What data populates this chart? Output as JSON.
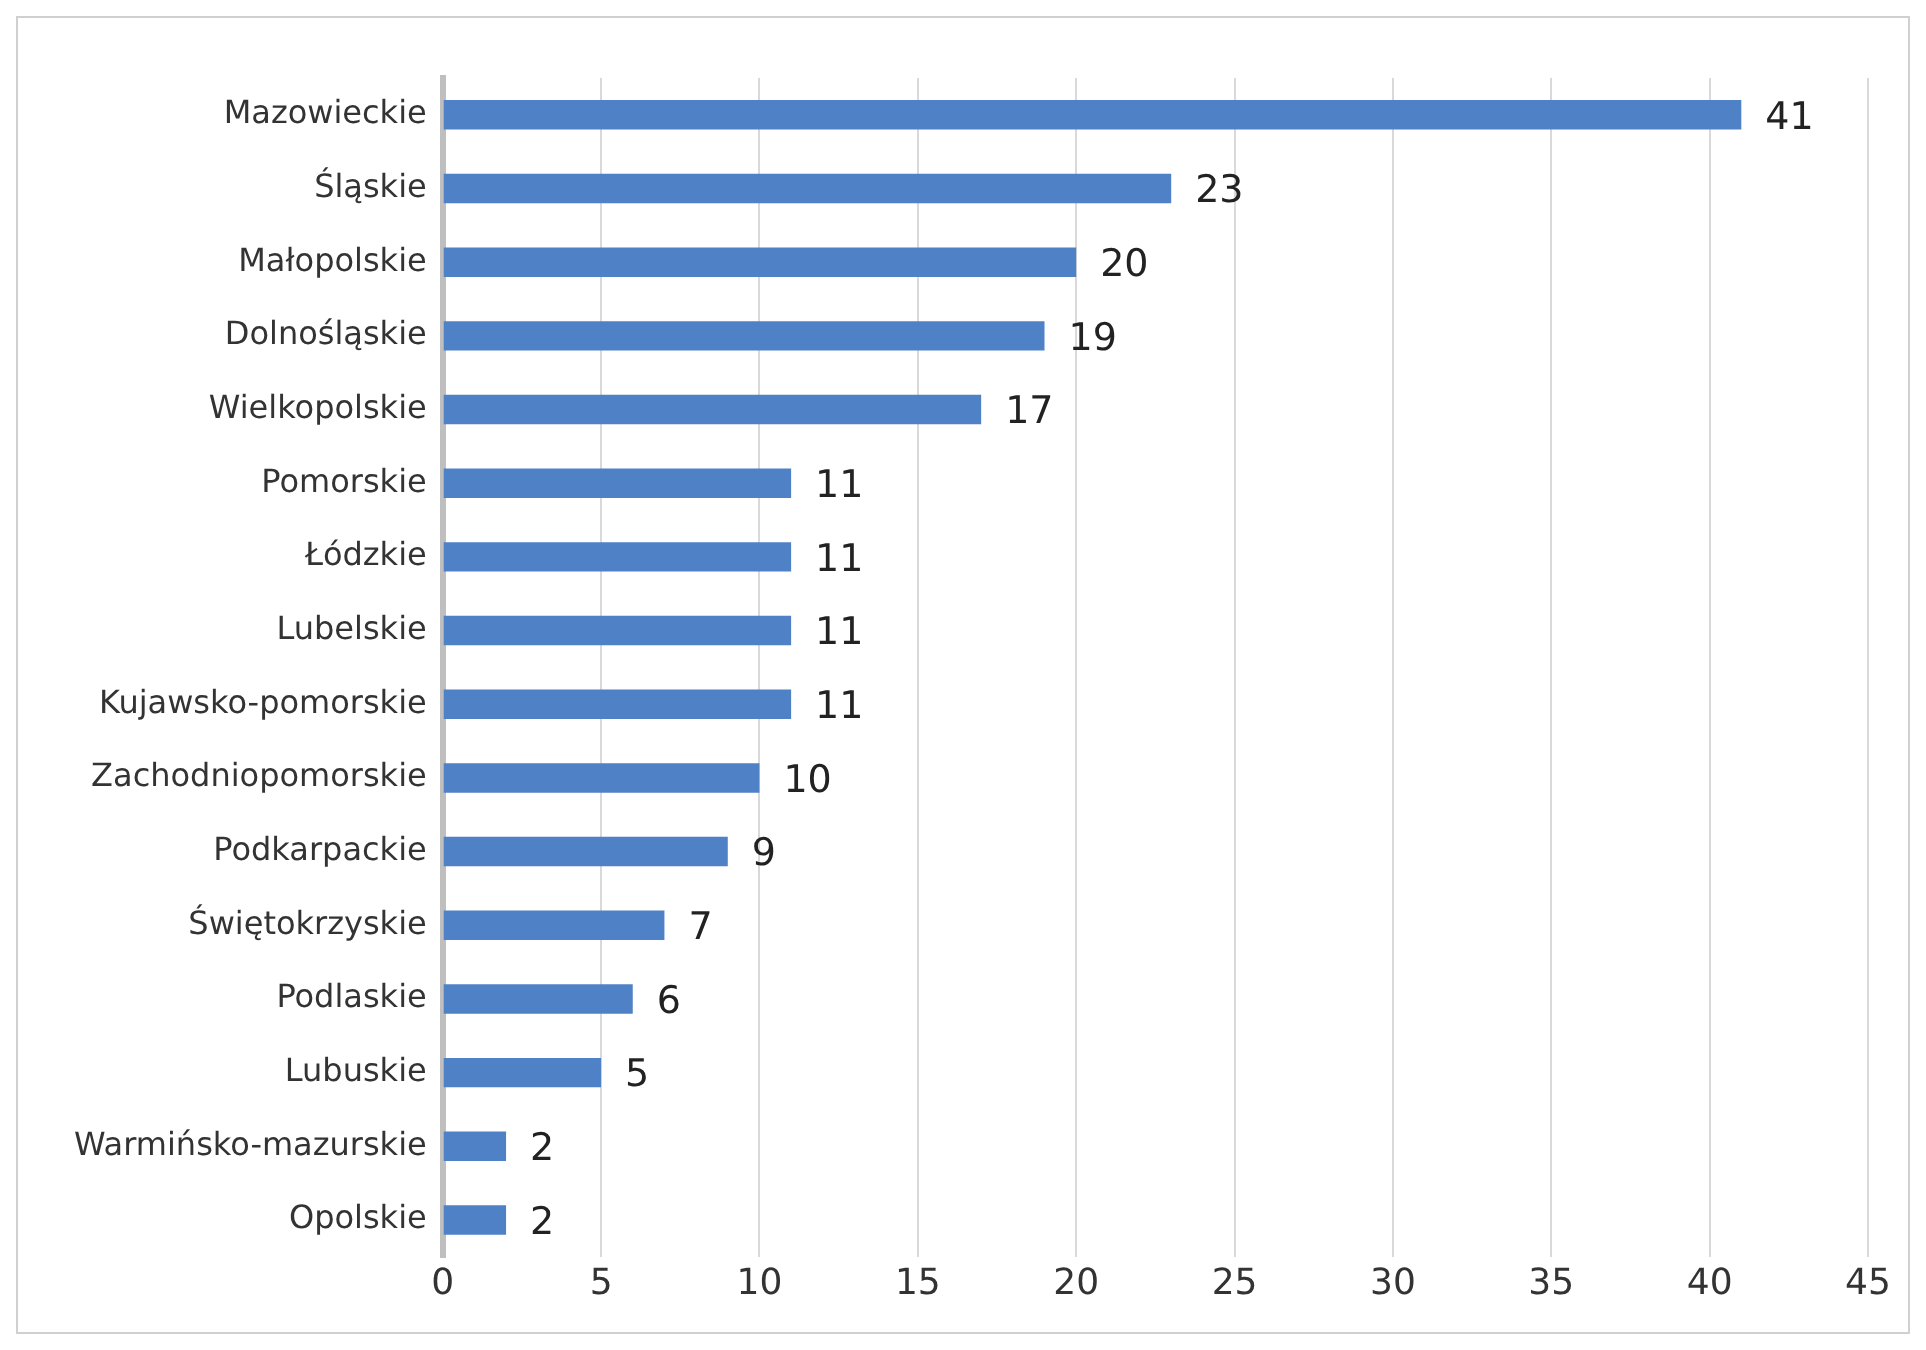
{
  "chart_data": {
    "type": "bar",
    "orientation": "horizontal",
    "categories": [
      "Mazowieckie",
      "Śląskie",
      "Małopolskie",
      "Dolnośląskie",
      "Wielkopolskie",
      "Pomorskie",
      "Łódzkie",
      "Lubelskie",
      "Kujawsko-pomorskie",
      "Zachodniopomorskie",
      "Podkarpackie",
      "Świętokrzyskie",
      "Podlaskie",
      "Lubuskie",
      "Warmińsko-mazurskie",
      "Opolskie"
    ],
    "values": [
      41,
      23,
      20,
      19,
      17,
      11,
      11,
      11,
      11,
      10,
      9,
      7,
      6,
      5,
      2,
      2
    ],
    "color": "#4f81c7",
    "xlim": [
      0,
      45
    ],
    "xticks": [
      0,
      5,
      10,
      15,
      20,
      25,
      30,
      35,
      40,
      45
    ],
    "grid": "x",
    "data_labels": true,
    "legend": false
  }
}
